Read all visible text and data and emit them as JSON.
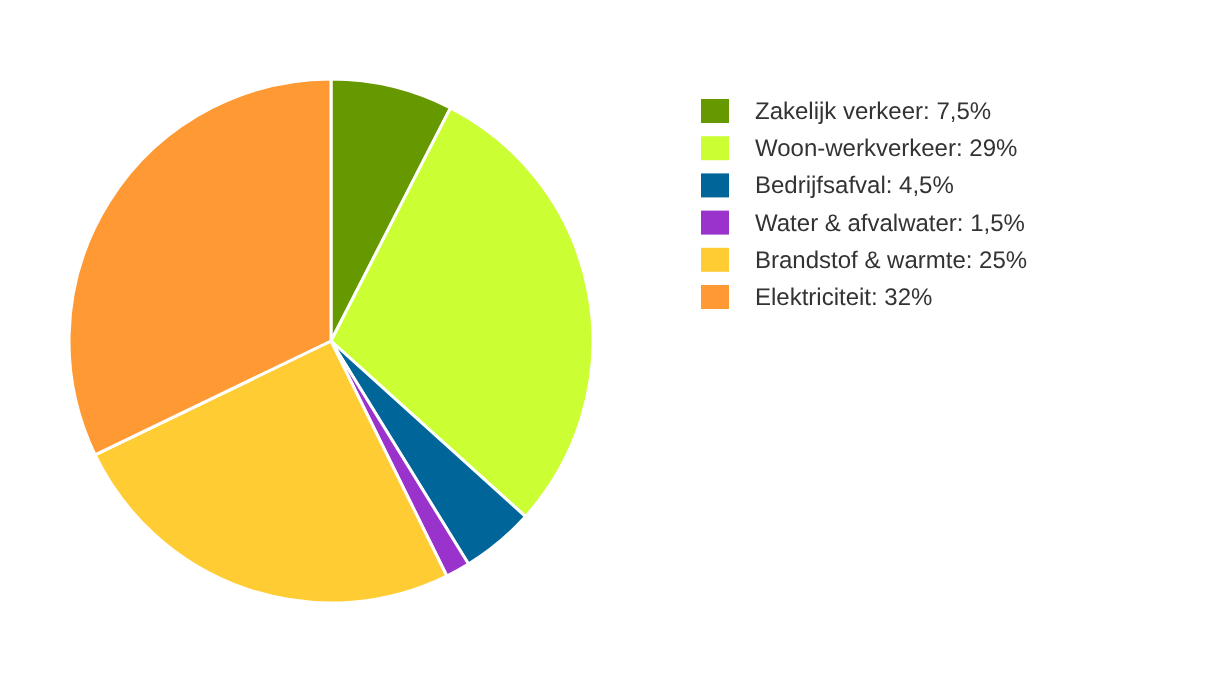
{
  "chart_data": {
    "type": "pie",
    "categories": [
      "Zakelijk verkeer",
      "Woon-werkverkeer",
      "Bedrijfsafval",
      "Water & afvalwater",
      "Brandstof & warmte",
      "Elektriciteit"
    ],
    "values": [
      7.5,
      29,
      4.5,
      1.5,
      25,
      32
    ],
    "value_labels": [
      "7,5%",
      "29%",
      "4,5%",
      "1,5%",
      "25%",
      "32%"
    ],
    "colors": [
      "#669900",
      "#ccff33",
      "#006699",
      "#9933cc",
      "#ffcc33",
      "#ff9933"
    ],
    "legend": "right"
  }
}
